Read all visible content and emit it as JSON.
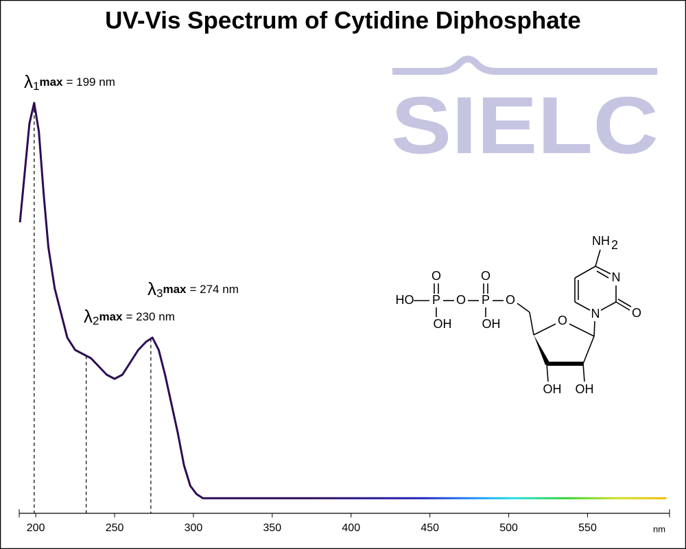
{
  "chart_data": {
    "type": "line",
    "title": "UV-Vis Spectrum of Cytidine Diphosphate",
    "x": [
      190,
      193,
      196,
      199,
      202,
      205,
      208,
      212,
      216,
      220,
      225,
      230,
      235,
      240,
      245,
      250,
      255,
      260,
      265,
      270,
      274,
      278,
      282,
      286,
      290,
      294,
      298,
      302,
      306,
      350,
      400,
      450,
      500,
      550,
      600
    ],
    "values": [
      0.67,
      0.79,
      0.91,
      0.96,
      0.89,
      0.74,
      0.61,
      0.51,
      0.45,
      0.39,
      0.36,
      0.35,
      0.34,
      0.32,
      0.3,
      0.29,
      0.3,
      0.33,
      0.36,
      0.38,
      0.39,
      0.36,
      0.3,
      0.23,
      0.16,
      0.08,
      0.03,
      0.01,
      0,
      0,
      0,
      0,
      0,
      0,
      0
    ],
    "color": "#2d0b55",
    "xlim": [
      189.5,
      602
    ],
    "xticks": [
      200,
      250,
      300,
      350,
      400,
      450,
      500,
      550
    ],
    "xlabel": "nm",
    "ylim": [
      0,
      1
    ],
    "annotations": [
      {
        "symbol": "λ",
        "sub": "1",
        "label": "max",
        "text": "= 199 nm",
        "x": 199
      },
      {
        "symbol": "λ",
        "sub": "2",
        "label": "max",
        "text": "= 230 nm",
        "x": 232
      },
      {
        "symbol": "λ",
        "sub": "3",
        "label": "max",
        "text": "= 274 nm",
        "x": 273
      }
    ]
  },
  "logo": "SIELC",
  "molecule": {
    "labels": [
      "HO",
      "P",
      "O",
      "OH",
      "O",
      "P",
      "O",
      "OH",
      "O",
      "O",
      "OH",
      "OH",
      "N",
      "N",
      "O",
      "NH",
      "2"
    ]
  }
}
